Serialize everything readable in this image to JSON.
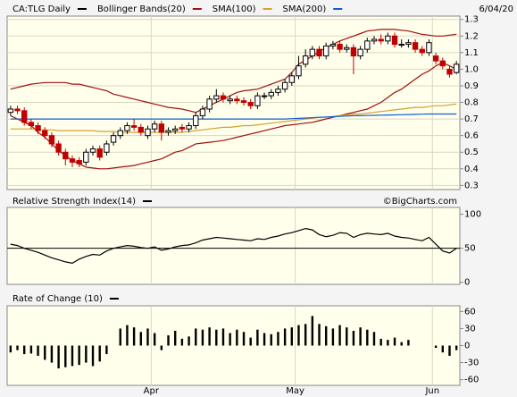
{
  "chart_data": [
    {
      "type": "candlestick",
      "title": "CA:TLG Daily",
      "date": "6/04/20",
      "ohlc": {
        "name": "CA:TLG Daily",
        "color": "#000000",
        "down_color": "#c00000",
        "open": [
          0.74,
          0.76,
          0.75,
          0.68,
          0.66,
          0.63,
          0.6,
          0.55,
          0.5,
          0.46,
          0.45,
          0.44,
          0.5,
          0.52,
          0.5,
          0.56,
          0.6,
          0.63,
          0.66,
          0.65,
          0.6,
          0.64,
          0.67,
          0.62,
          0.63,
          0.65,
          0.64,
          0.66,
          0.72,
          0.76,
          0.82,
          0.84,
          0.81,
          0.82,
          0.81,
          0.8,
          0.78,
          0.84,
          0.84,
          0.86,
          0.88,
          0.92,
          0.96,
          1.03,
          1.08,
          1.12,
          1.08,
          1.14,
          1.15,
          1.12,
          1.13,
          1.08,
          1.12,
          1.17,
          1.18,
          1.17,
          1.2,
          1.15,
          1.15,
          1.16,
          1.12,
          1.1,
          1.08,
          1.05,
          1.0,
          0.98
        ],
        "high": [
          0.78,
          0.78,
          0.77,
          0.7,
          0.68,
          0.65,
          0.62,
          0.57,
          0.52,
          0.48,
          0.47,
          0.52,
          0.54,
          0.54,
          0.57,
          0.62,
          0.65,
          0.68,
          0.7,
          0.67,
          0.66,
          0.69,
          0.69,
          0.65,
          0.66,
          0.67,
          0.68,
          0.74,
          0.78,
          0.84,
          0.88,
          0.86,
          0.84,
          0.84,
          0.83,
          0.82,
          0.86,
          0.86,
          0.88,
          0.9,
          0.94,
          0.98,
          1.08,
          1.12,
          1.14,
          1.14,
          1.16,
          1.17,
          1.17,
          1.15,
          1.15,
          1.14,
          1.19,
          1.2,
          1.21,
          1.22,
          1.22,
          1.18,
          1.18,
          1.18,
          1.14,
          1.18,
          1.1,
          1.07,
          1.02,
          1.05
        ],
        "low": [
          0.72,
          0.73,
          0.66,
          0.64,
          0.61,
          0.58,
          0.53,
          0.48,
          0.42,
          0.41,
          0.41,
          0.42,
          0.48,
          0.45,
          0.48,
          0.54,
          0.58,
          0.61,
          0.63,
          0.6,
          0.58,
          0.62,
          0.57,
          0.6,
          0.61,
          0.62,
          0.62,
          0.64,
          0.7,
          0.74,
          0.8,
          0.8,
          0.79,
          0.79,
          0.78,
          0.76,
          0.76,
          0.82,
          0.82,
          0.84,
          0.86,
          0.9,
          0.94,
          1.01,
          1.06,
          1.06,
          1.06,
          1.12,
          1.1,
          1.1,
          0.97,
          1.06,
          1.1,
          1.15,
          1.15,
          1.15,
          1.13,
          1.13,
          1.13,
          1.1,
          1.08,
          1.08,
          1.03,
          1.0,
          0.95,
          0.97
        ],
        "close": [
          0.76,
          0.75,
          0.68,
          0.66,
          0.63,
          0.6,
          0.55,
          0.5,
          0.46,
          0.44,
          0.43,
          0.5,
          0.52,
          0.47,
          0.55,
          0.6,
          0.63,
          0.66,
          0.65,
          0.62,
          0.64,
          0.67,
          0.62,
          0.63,
          0.64,
          0.64,
          0.66,
          0.72,
          0.76,
          0.82,
          0.84,
          0.82,
          0.82,
          0.81,
          0.8,
          0.78,
          0.84,
          0.84,
          0.86,
          0.88,
          0.92,
          0.96,
          1.02,
          1.08,
          1.12,
          1.08,
          1.14,
          1.15,
          1.12,
          1.13,
          1.08,
          1.12,
          1.17,
          1.18,
          1.17,
          1.2,
          1.15,
          1.15,
          1.16,
          1.12,
          1.1,
          1.16,
          1.05,
          1.02,
          0.97,
          1.03
        ]
      },
      "series": [
        {
          "name": "Bollinger Bands(20)",
          "color": "#a01010",
          "upper": [
            0.88,
            0.89,
            0.9,
            0.91,
            0.915,
            0.92,
            0.92,
            0.92,
            0.92,
            0.91,
            0.91,
            0.9,
            0.89,
            0.88,
            0.87,
            0.85,
            0.84,
            0.83,
            0.82,
            0.81,
            0.8,
            0.79,
            0.78,
            0.77,
            0.765,
            0.76,
            0.75,
            0.74,
            0.76,
            0.78,
            0.8,
            0.82,
            0.84,
            0.86,
            0.87,
            0.875,
            0.88,
            0.895,
            0.91,
            0.925,
            0.94,
            0.98,
            1.03,
            1.055,
            1.08,
            1.105,
            1.13,
            1.15,
            1.17,
            1.185,
            1.2,
            1.215,
            1.23,
            1.235,
            1.24,
            1.24,
            1.24,
            1.235,
            1.23,
            1.22,
            1.21,
            1.205,
            1.2,
            1.2,
            1.205,
            1.21
          ],
          "lower": [
            0.72,
            0.7,
            0.68,
            0.66,
            0.62,
            0.59,
            0.55,
            0.51,
            0.48,
            0.45,
            0.43,
            0.41,
            0.405,
            0.4,
            0.4,
            0.405,
            0.41,
            0.415,
            0.42,
            0.43,
            0.44,
            0.45,
            0.46,
            0.48,
            0.5,
            0.51,
            0.53,
            0.55,
            0.555,
            0.56,
            0.565,
            0.57,
            0.58,
            0.59,
            0.6,
            0.61,
            0.62,
            0.63,
            0.64,
            0.65,
            0.66,
            0.665,
            0.67,
            0.675,
            0.68,
            0.69,
            0.7,
            0.71,
            0.72,
            0.73,
            0.74,
            0.75,
            0.76,
            0.78,
            0.8,
            0.83,
            0.86,
            0.88,
            0.91,
            0.94,
            0.97,
            0.99,
            1.02,
            1.04,
            1.02,
            1.0
          ]
        },
        {
          "name": "SMA(100)",
          "color": "#d4a030",
          "values": [
            0.64,
            0.64,
            0.64,
            0.64,
            0.635,
            0.635,
            0.635,
            0.63,
            0.63,
            0.63,
            0.63,
            0.63,
            0.63,
            0.625,
            0.625,
            0.625,
            0.62,
            0.62,
            0.62,
            0.62,
            0.62,
            0.62,
            0.62,
            0.62,
            0.62,
            0.62,
            0.625,
            0.63,
            0.635,
            0.64,
            0.645,
            0.65,
            0.65,
            0.655,
            0.66,
            0.66,
            0.665,
            0.67,
            0.675,
            0.68,
            0.685,
            0.69,
            0.695,
            0.7,
            0.705,
            0.71,
            0.71,
            0.715,
            0.72,
            0.725,
            0.73,
            0.73,
            0.735,
            0.74,
            0.745,
            0.75,
            0.755,
            0.76,
            0.765,
            0.77,
            0.77,
            0.775,
            0.78,
            0.78,
            0.785,
            0.79
          ]
        },
        {
          "name": "SMA(200)",
          "color": "#1060d0",
          "values": [
            0.7,
            0.7,
            0.7,
            0.7,
            0.7,
            0.7,
            0.7,
            0.7,
            0.7,
            0.7,
            0.7,
            0.7,
            0.7,
            0.7,
            0.7,
            0.7,
            0.7,
            0.7,
            0.7,
            0.7,
            0.7,
            0.7,
            0.7,
            0.7,
            0.7,
            0.7,
            0.7,
            0.7,
            0.7,
            0.7,
            0.7,
            0.7,
            0.7,
            0.7,
            0.7,
            0.7,
            0.7,
            0.7,
            0.7,
            0.7,
            0.7,
            0.702,
            0.704,
            0.706,
            0.708,
            0.71,
            0.712,
            0.714,
            0.716,
            0.718,
            0.72,
            0.72,
            0.721,
            0.722,
            0.723,
            0.724,
            0.725,
            0.726,
            0.727,
            0.728,
            0.729,
            0.73,
            0.73,
            0.73,
            0.73,
            0.73
          ]
        }
      ],
      "ylim": [
        0.275,
        1.32
      ],
      "yticks": [
        0.3,
        0.4,
        0.5,
        0.6,
        0.7,
        0.8,
        0.9,
        {
          "value": 1,
          "label": "1.0"
        },
        1.1,
        1.2,
        1.3
      ],
      "grid": true
    },
    {
      "type": "line",
      "title": "Relative Strength Index(14)",
      "watermark": "©BigCharts.com",
      "series": [
        {
          "name": "Relative Strength Index(14)",
          "color": "#000000",
          "values": [
            56,
            54,
            50,
            47,
            44,
            40,
            36,
            33,
            30,
            28,
            34,
            38,
            41,
            40,
            46,
            50,
            52,
            54,
            53,
            51,
            50,
            52,
            47,
            49,
            52,
            54,
            55,
            58,
            62,
            64,
            66,
            65,
            64,
            63,
            62,
            61,
            64,
            63,
            66,
            68,
            71,
            73,
            76,
            79,
            77,
            70,
            67,
            69,
            73,
            72,
            66,
            70,
            72,
            71,
            70,
            72,
            68,
            66,
            65,
            63,
            61,
            66,
            56,
            46,
            43,
            50
          ]
        }
      ],
      "ylim": [
        -3,
        110
      ],
      "yticks": [
        0,
        50,
        100
      ],
      "reference_line": 50
    },
    {
      "type": "bar",
      "title": "Rate of Change (10)",
      "color": "#000000",
      "categories": [
        null,
        null,
        null,
        null,
        null,
        null,
        null,
        null,
        null,
        null,
        null,
        null,
        null,
        null,
        null,
        null,
        null,
        null,
        null,
        null,
        null,
        "Apr",
        null,
        null,
        null,
        null,
        null,
        null,
        null,
        null,
        null,
        null,
        null,
        null,
        null,
        null,
        null,
        null,
        null,
        null,
        null,
        null,
        "May",
        null,
        null,
        null,
        null,
        null,
        null,
        null,
        null,
        null,
        null,
        null,
        null,
        null,
        null,
        null,
        null,
        null,
        null,
        null,
        "Jun",
        null,
        null,
        null
      ],
      "values": [
        -12,
        -8,
        -15,
        -14,
        -18,
        -25,
        -30,
        -40,
        -38,
        -36,
        -34,
        -30,
        -36,
        -28,
        -15,
        0,
        30,
        36,
        32,
        24,
        30,
        22,
        -8,
        18,
        26,
        12,
        16,
        30,
        28,
        32,
        28,
        30,
        22,
        28,
        24,
        14,
        28,
        22,
        20,
        24,
        30,
        32,
        36,
        38,
        52,
        38,
        34,
        30,
        36,
        32,
        26,
        32,
        28,
        24,
        12,
        10,
        14,
        6,
        10,
        0,
        0,
        0,
        -4,
        -12,
        -18,
        -8
      ],
      "ylim": [
        -70,
        70
      ],
      "yticks": [
        -60,
        -30,
        0,
        30,
        60
      ]
    }
  ]
}
